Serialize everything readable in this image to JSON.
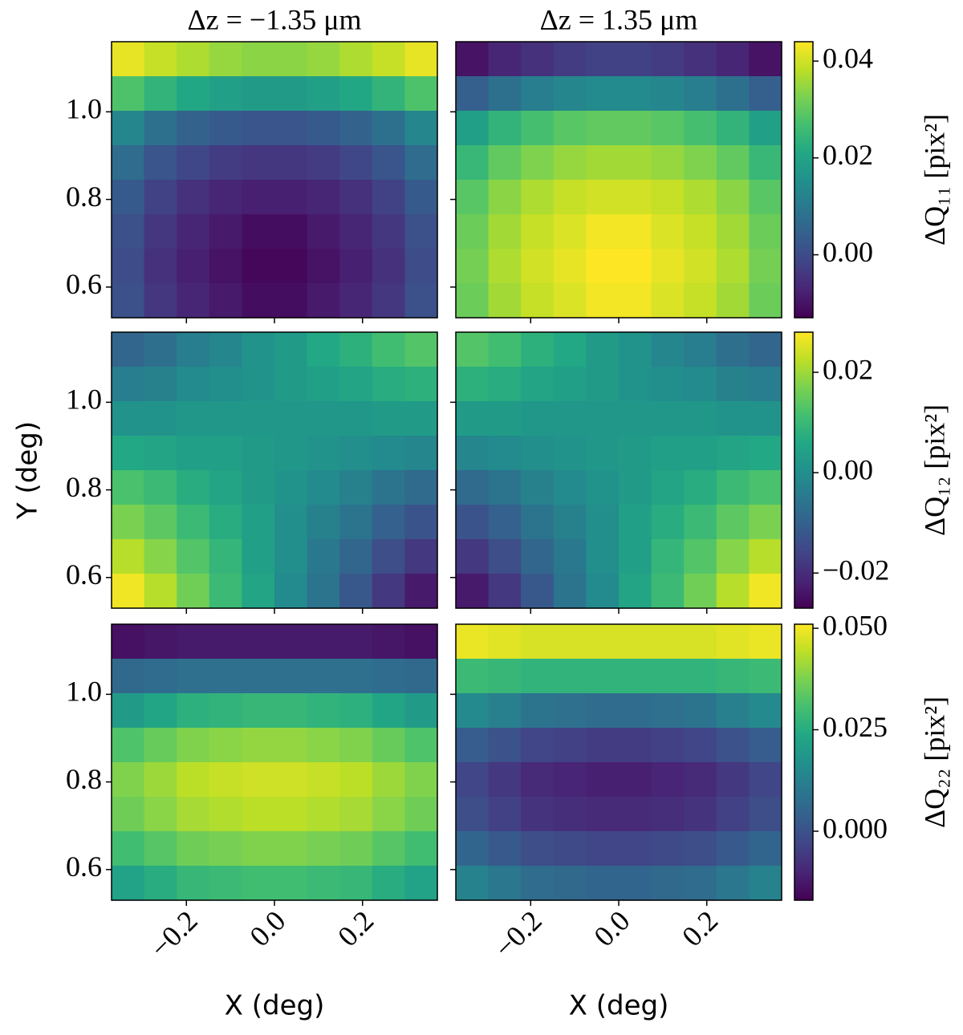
{
  "chart_data": {
    "type": "heatmap",
    "colormap": "viridis",
    "xlabel": "X (deg)",
    "ylabel": "Y (deg)",
    "xlim": [
      -0.37,
      0.37
    ],
    "ylim": [
      0.53,
      1.16
    ],
    "xticks": [
      {
        "value": -0.2,
        "label": "−0.2"
      },
      {
        "value": 0,
        "label": "0.0"
      },
      {
        "value": 0.2,
        "label": "0.2"
      }
    ],
    "yticks": [
      0.6,
      0.8,
      {
        "value": 1,
        "label": "1.0"
      }
    ],
    "columns": [
      {
        "title": "Δz = −1.35 μm"
      },
      {
        "title": "Δz = 1.35 μm"
      }
    ],
    "rows": [
      {
        "colorbar_label": "ΔQ₁₁ [pix²]",
        "clim": [
          -0.013,
          0.044
        ],
        "cticks": [
          {
            "value": 0,
            "label": "0.00"
          },
          {
            "value": 0.02,
            "label": "0.02"
          },
          {
            "value": 0.04,
            "label": "0.04"
          }
        ],
        "panels": [
          {
            "z": [
              [
                0.042,
                0.039,
                0.037,
                0.035,
                0.034,
                0.034,
                0.035,
                0.037,
                0.039,
                0.042
              ],
              [
                0.028,
                0.024,
                0.021,
                0.019,
                0.018,
                0.018,
                0.019,
                0.021,
                0.024,
                0.028
              ],
              [
                0.013,
                0.008,
                0.005,
                0.003,
                0.002,
                0.002,
                0.003,
                0.005,
                0.008,
                0.013
              ],
              [
                0.007,
                0.002,
                -0.001,
                -0.003,
                -0.004,
                -0.004,
                -0.003,
                -0.001,
                0.002,
                0.007
              ],
              [
                0.003,
                -0.002,
                -0.005,
                -0.007,
                -0.008,
                -0.008,
                -0.007,
                -0.005,
                -0.002,
                0.003
              ],
              [
                0.001,
                -0.004,
                -0.007,
                -0.009,
                -0.011,
                -0.011,
                -0.009,
                -0.007,
                -0.004,
                0.001
              ],
              [
                0,
                -0.005,
                -0.008,
                -0.01,
                -0.012,
                -0.012,
                -0.01,
                -0.008,
                -0.005,
                0
              ],
              [
                0.001,
                -0.004,
                -0.007,
                -0.009,
                -0.011,
                -0.011,
                -0.009,
                -0.007,
                -0.004,
                0.001
              ]
            ]
          },
          {
            "z": [
              [
                -0.01,
                -0.007,
                -0.005,
                -0.003,
                -0.002,
                -0.002,
                -0.003,
                -0.005,
                -0.007,
                -0.01
              ],
              [
                0.004,
                0.008,
                0.011,
                0.013,
                0.014,
                0.014,
                0.013,
                0.011,
                0.008,
                0.004
              ],
              [
                0.019,
                0.024,
                0.027,
                0.029,
                0.03,
                0.03,
                0.029,
                0.027,
                0.024,
                0.019
              ],
              [
                0.025,
                0.03,
                0.033,
                0.035,
                0.036,
                0.036,
                0.035,
                0.033,
                0.03,
                0.025
              ],
              [
                0.029,
                0.034,
                0.037,
                0.039,
                0.04,
                0.04,
                0.039,
                0.037,
                0.034,
                0.029
              ],
              [
                0.031,
                0.036,
                0.039,
                0.041,
                0.043,
                0.043,
                0.041,
                0.039,
                0.036,
                0.031
              ],
              [
                0.032,
                0.037,
                0.04,
                0.042,
                0.044,
                0.044,
                0.042,
                0.04,
                0.037,
                0.032
              ],
              [
                0.031,
                0.036,
                0.039,
                0.041,
                0.043,
                0.043,
                0.041,
                0.039,
                0.036,
                0.031
              ]
            ]
          }
        ]
      },
      {
        "colorbar_label": "ΔQ₁₂ [pix²]",
        "clim": [
          -0.027,
          0.028
        ],
        "cticks": [
          {
            "value": -0.02,
            "label": "−0.02"
          },
          {
            "value": 0,
            "label": "0.00"
          },
          {
            "value": 0.02,
            "label": "0.02"
          }
        ],
        "panels": [
          {
            "z": [
              [
                -0.009,
                -0.007,
                -0.004,
                -0.002,
                0.001,
                0.003,
                0.006,
                0.008,
                0.011,
                0.013
              ],
              [
                -0.004,
                -0.003,
                -0.001,
                0,
                0.001,
                0.003,
                0.004,
                0.005,
                0.007,
                0.008
              ],
              [
                0.001,
                0.001,
                0.002,
                0.002,
                0.002,
                0.002,
                0.002,
                0.002,
                0.003,
                0.003
              ],
              [
                0.006,
                0.005,
                0.004,
                0.004,
                0.003,
                0.002,
                0.001,
                0,
                -0.001,
                -0.002
              ],
              [
                0.012,
                0.01,
                0.007,
                0.005,
                0.003,
                0.001,
                -0.001,
                -0.003,
                -0.006,
                -0.008
              ],
              [
                0.017,
                0.014,
                0.01,
                0.007,
                0.004,
                0,
                -0.003,
                -0.006,
                -0.01,
                -0.013
              ],
              [
                0.022,
                0.018,
                0.013,
                0.009,
                0.004,
                0,
                -0.005,
                -0.009,
                -0.014,
                -0.018
              ],
              [
                0.027,
                0.022,
                0.016,
                0.01,
                0.005,
                -0.001,
                -0.006,
                -0.012,
                -0.018,
                -0.023
              ]
            ]
          },
          {
            "z": [
              [
                0.013,
                0.011,
                0.008,
                0.006,
                0.003,
                0.001,
                -0.002,
                -0.004,
                -0.007,
                -0.009
              ],
              [
                0.008,
                0.007,
                0.005,
                0.004,
                0.003,
                0.001,
                0,
                -0.001,
                -0.003,
                -0.004
              ],
              [
                0.003,
                0.003,
                0.002,
                0.002,
                0.002,
                0.002,
                0.002,
                0.002,
                0.001,
                0.001
              ],
              [
                -0.002,
                -0.001,
                0,
                0.001,
                0.002,
                0.003,
                0.004,
                0.004,
                0.005,
                0.006
              ],
              [
                -0.008,
                -0.006,
                -0.003,
                -0.001,
                0.001,
                0.003,
                0.005,
                0.007,
                0.01,
                0.012
              ],
              [
                -0.013,
                -0.01,
                -0.006,
                -0.003,
                0,
                0.004,
                0.007,
                0.01,
                0.014,
                0.017
              ],
              [
                -0.018,
                -0.014,
                -0.009,
                -0.005,
                0,
                0.004,
                0.009,
                0.013,
                0.018,
                0.022
              ],
              [
                -0.023,
                -0.018,
                -0.012,
                -0.006,
                -0.001,
                0.005,
                0.01,
                0.016,
                0.022,
                0.027
              ]
            ]
          }
        ]
      },
      {
        "colorbar_label": "ΔQ₂₂ [pix²]",
        "clim": [
          -0.017,
          0.051
        ],
        "cticks": [
          {
            "value": 0,
            "label": "0.000"
          },
          {
            "value": 0.025,
            "label": "0.025"
          },
          {
            "value": 0.05,
            "label": "0.050"
          }
        ],
        "panels": [
          {
            "z": [
              [
                -0.014,
                -0.013,
                -0.012,
                -0.012,
                -0.012,
                -0.012,
                -0.012,
                -0.012,
                -0.013,
                -0.014
              ],
              [
                0.006,
                0.007,
                0.008,
                0.008,
                0.008,
                0.008,
                0.008,
                0.008,
                0.007,
                0.006
              ],
              [
                0.02,
                0.023,
                0.026,
                0.027,
                0.028,
                0.028,
                0.027,
                0.026,
                0.023,
                0.02
              ],
              [
                0.032,
                0.035,
                0.038,
                0.039,
                0.04,
                0.04,
                0.039,
                0.038,
                0.035,
                0.032
              ],
              [
                0.038,
                0.041,
                0.044,
                0.045,
                0.046,
                0.046,
                0.045,
                0.044,
                0.041,
                0.038
              ],
              [
                0.036,
                0.039,
                0.042,
                0.043,
                0.044,
                0.044,
                0.043,
                0.042,
                0.039,
                0.036
              ],
              [
                0.03,
                0.033,
                0.036,
                0.037,
                0.038,
                0.038,
                0.037,
                0.036,
                0.033,
                0.03
              ],
              [
                0.022,
                0.025,
                0.028,
                0.029,
                0.03,
                0.03,
                0.029,
                0.028,
                0.025,
                0.022
              ]
            ]
          },
          {
            "z": [
              [
                0.049,
                0.048,
                0.047,
                0.047,
                0.047,
                0.047,
                0.047,
                0.047,
                0.048,
                0.049
              ],
              [
                0.029,
                0.028,
                0.027,
                0.027,
                0.027,
                0.027,
                0.027,
                0.027,
                0.028,
                0.029
              ],
              [
                0.015,
                0.012,
                0.009,
                0.008,
                0.007,
                0.007,
                0.008,
                0.009,
                0.012,
                0.015
              ],
              [
                0.003,
                0,
                -0.003,
                -0.004,
                -0.005,
                -0.005,
                -0.004,
                -0.003,
                0,
                0.003
              ],
              [
                -0.003,
                -0.006,
                -0.009,
                -0.01,
                -0.011,
                -0.011,
                -0.01,
                -0.009,
                -0.006,
                -0.003
              ],
              [
                -0.001,
                -0.004,
                -0.007,
                -0.008,
                -0.009,
                -0.009,
                -0.008,
                -0.007,
                -0.004,
                -0.001
              ],
              [
                0.005,
                0.002,
                -0.001,
                -0.002,
                -0.003,
                -0.003,
                -0.002,
                -0.001,
                0.002,
                0.005
              ],
              [
                0.013,
                0.01,
                0.007,
                0.006,
                0.005,
                0.005,
                0.006,
                0.007,
                0.01,
                0.013
              ]
            ]
          }
        ]
      }
    ]
  }
}
